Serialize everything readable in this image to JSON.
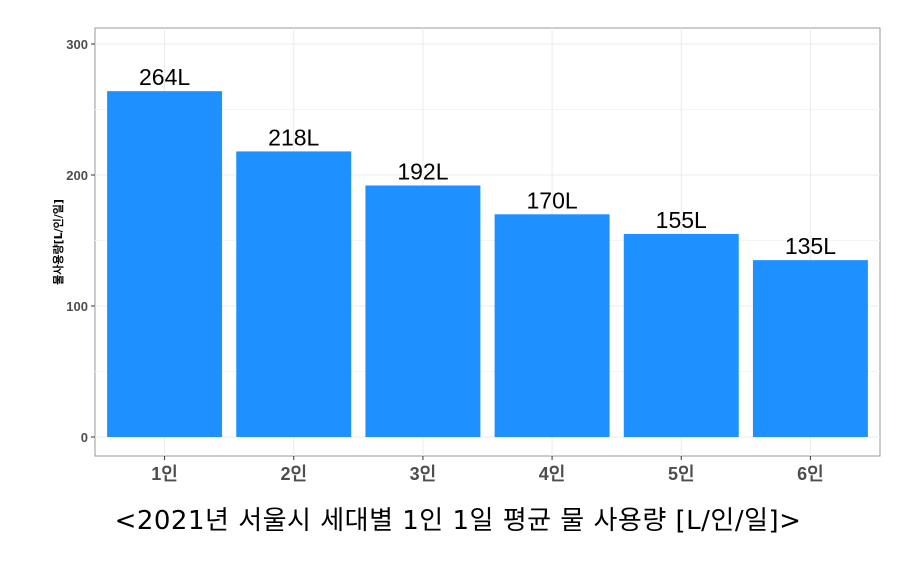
{
  "chart_data": {
    "type": "bar",
    "categories": [
      "1인",
      "2인",
      "3인",
      "4인",
      "5인",
      "6인"
    ],
    "values": [
      264,
      218,
      192,
      170,
      155,
      135
    ],
    "value_labels": [
      "264L",
      "218L",
      "192L",
      "170L",
      "155L",
      "135L"
    ],
    "ylabel": "물사용량[L/인/일]",
    "yticks": [
      0,
      100,
      200,
      300
    ],
    "ylim": [
      0,
      310
    ],
    "grid": true,
    "legend": "none",
    "bar_color": "#1E90FF"
  },
  "caption": "<2021년 서울시 세대별 1인 1일 평균 물 사용량 [L/인/일]>"
}
